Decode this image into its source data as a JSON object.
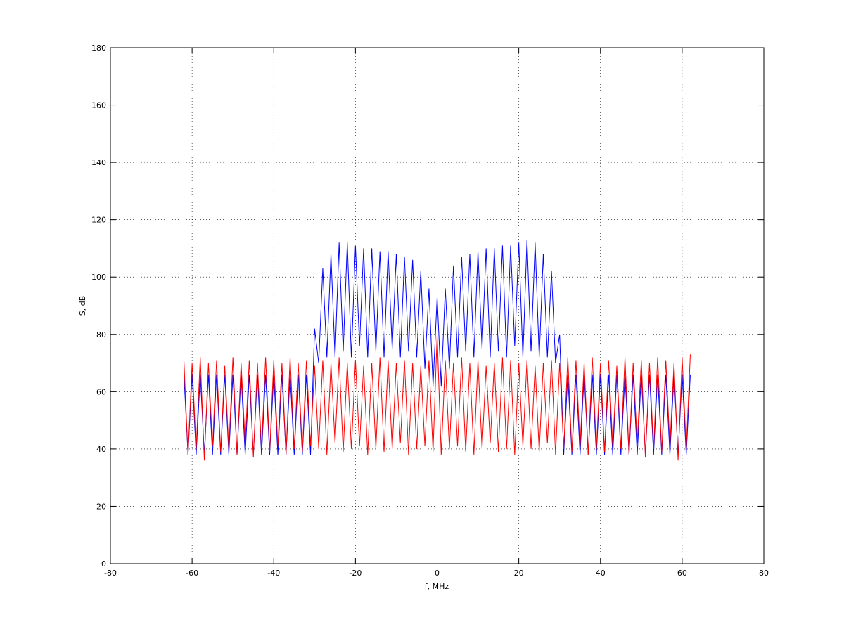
{
  "chart_data": {
    "type": "line",
    "xlabel": "f, MHz",
    "ylabel": "S, dB",
    "xlim": [
      -80,
      80
    ],
    "xticks": [
      -80,
      -60,
      -40,
      -20,
      0,
      20,
      40,
      60,
      80
    ],
    "ylim": [
      0,
      180
    ],
    "yticks": [
      0,
      20,
      40,
      60,
      80,
      100,
      120,
      140,
      160,
      180
    ],
    "grid": true,
    "x": [
      -62,
      -61,
      -60,
      -59,
      -58,
      -57,
      -56,
      -55,
      -54,
      -53,
      -52,
      -51,
      -50,
      -49,
      -48,
      -47,
      -46,
      -45,
      -44,
      -43,
      -42,
      -41,
      -40,
      -39,
      -38,
      -37,
      -36,
      -35,
      -34,
      -33,
      -32,
      -31,
      -30,
      -29,
      -28,
      -27,
      -26,
      -25,
      -24,
      -23,
      -22,
      -21,
      -20,
      -19,
      -18,
      -17,
      -16,
      -15,
      -14,
      -13,
      -12,
      -11,
      -10,
      -9,
      -8,
      -7,
      -6,
      -5,
      -4,
      -3,
      -2,
      -1,
      0,
      1,
      2,
      3,
      4,
      5,
      6,
      7,
      8,
      9,
      10,
      11,
      12,
      13,
      14,
      15,
      16,
      17,
      18,
      19,
      20,
      21,
      22,
      23,
      24,
      25,
      26,
      27,
      28,
      29,
      30,
      31,
      32,
      33,
      34,
      35,
      36,
      37,
      38,
      39,
      40,
      41,
      42,
      43,
      44,
      45,
      46,
      47,
      48,
      49,
      50,
      51,
      52,
      53,
      54,
      55,
      56,
      57,
      58,
      59,
      60,
      61,
      62
    ],
    "series": [
      {
        "color": "#0000ff",
        "values": [
          66,
          38,
          66,
          38,
          66,
          38,
          66,
          38,
          66,
          38,
          66,
          38,
          66,
          38,
          66,
          38,
          66,
          38,
          66,
          38,
          66,
          38,
          66,
          38,
          66,
          38,
          66,
          38,
          66,
          38,
          66,
          38,
          82,
          70,
          103,
          72,
          108,
          72,
          112,
          74,
          112,
          72,
          111,
          76,
          110,
          72,
          110,
          74,
          109,
          72,
          109,
          75,
          108,
          72,
          107,
          74,
          106,
          72,
          102,
          68,
          96,
          62,
          93,
          62,
          96,
          68,
          104,
          72,
          107,
          74,
          108,
          72,
          109,
          75,
          110,
          72,
          110,
          74,
          111,
          72,
          111,
          76,
          112,
          72,
          113,
          74,
          112,
          72,
          108,
          72,
          102,
          70,
          80,
          38,
          66,
          38,
          66,
          38,
          66,
          38,
          66,
          38,
          66,
          38,
          66,
          38,
          66,
          38,
          66,
          38,
          66,
          38,
          66,
          38,
          66,
          38,
          66,
          38,
          66,
          38,
          66,
          38,
          66,
          38,
          66
        ]
      },
      {
        "color": "#ff0000",
        "values": [
          71,
          38,
          70,
          40,
          72,
          36,
          70,
          41,
          71,
          39,
          69,
          40,
          72,
          38,
          70,
          42,
          71,
          37,
          70,
          40,
          72,
          39,
          71,
          41,
          70,
          38,
          72,
          40,
          70,
          39,
          71,
          41,
          69,
          40,
          71,
          38,
          70,
          42,
          72,
          39,
          70,
          40,
          71,
          41,
          69,
          38,
          70,
          40,
          72,
          39,
          71,
          40,
          70,
          42,
          71,
          38,
          70,
          40,
          69,
          41,
          71,
          39,
          80,
          38,
          71,
          40,
          70,
          41,
          72,
          39,
          70,
          38,
          71,
          40,
          69,
          42,
          70,
          39,
          72,
          40,
          71,
          38,
          70,
          41,
          71,
          40,
          69,
          39,
          70,
          42,
          71,
          38,
          70,
          40,
          72,
          39,
          71,
          41,
          70,
          38,
          72,
          40,
          70,
          39,
          71,
          41,
          69,
          40,
          72,
          38,
          70,
          42,
          71,
          37,
          70,
          40,
          72,
          39,
          71,
          41,
          70,
          36,
          72,
          40,
          73
        ]
      }
    ]
  }
}
